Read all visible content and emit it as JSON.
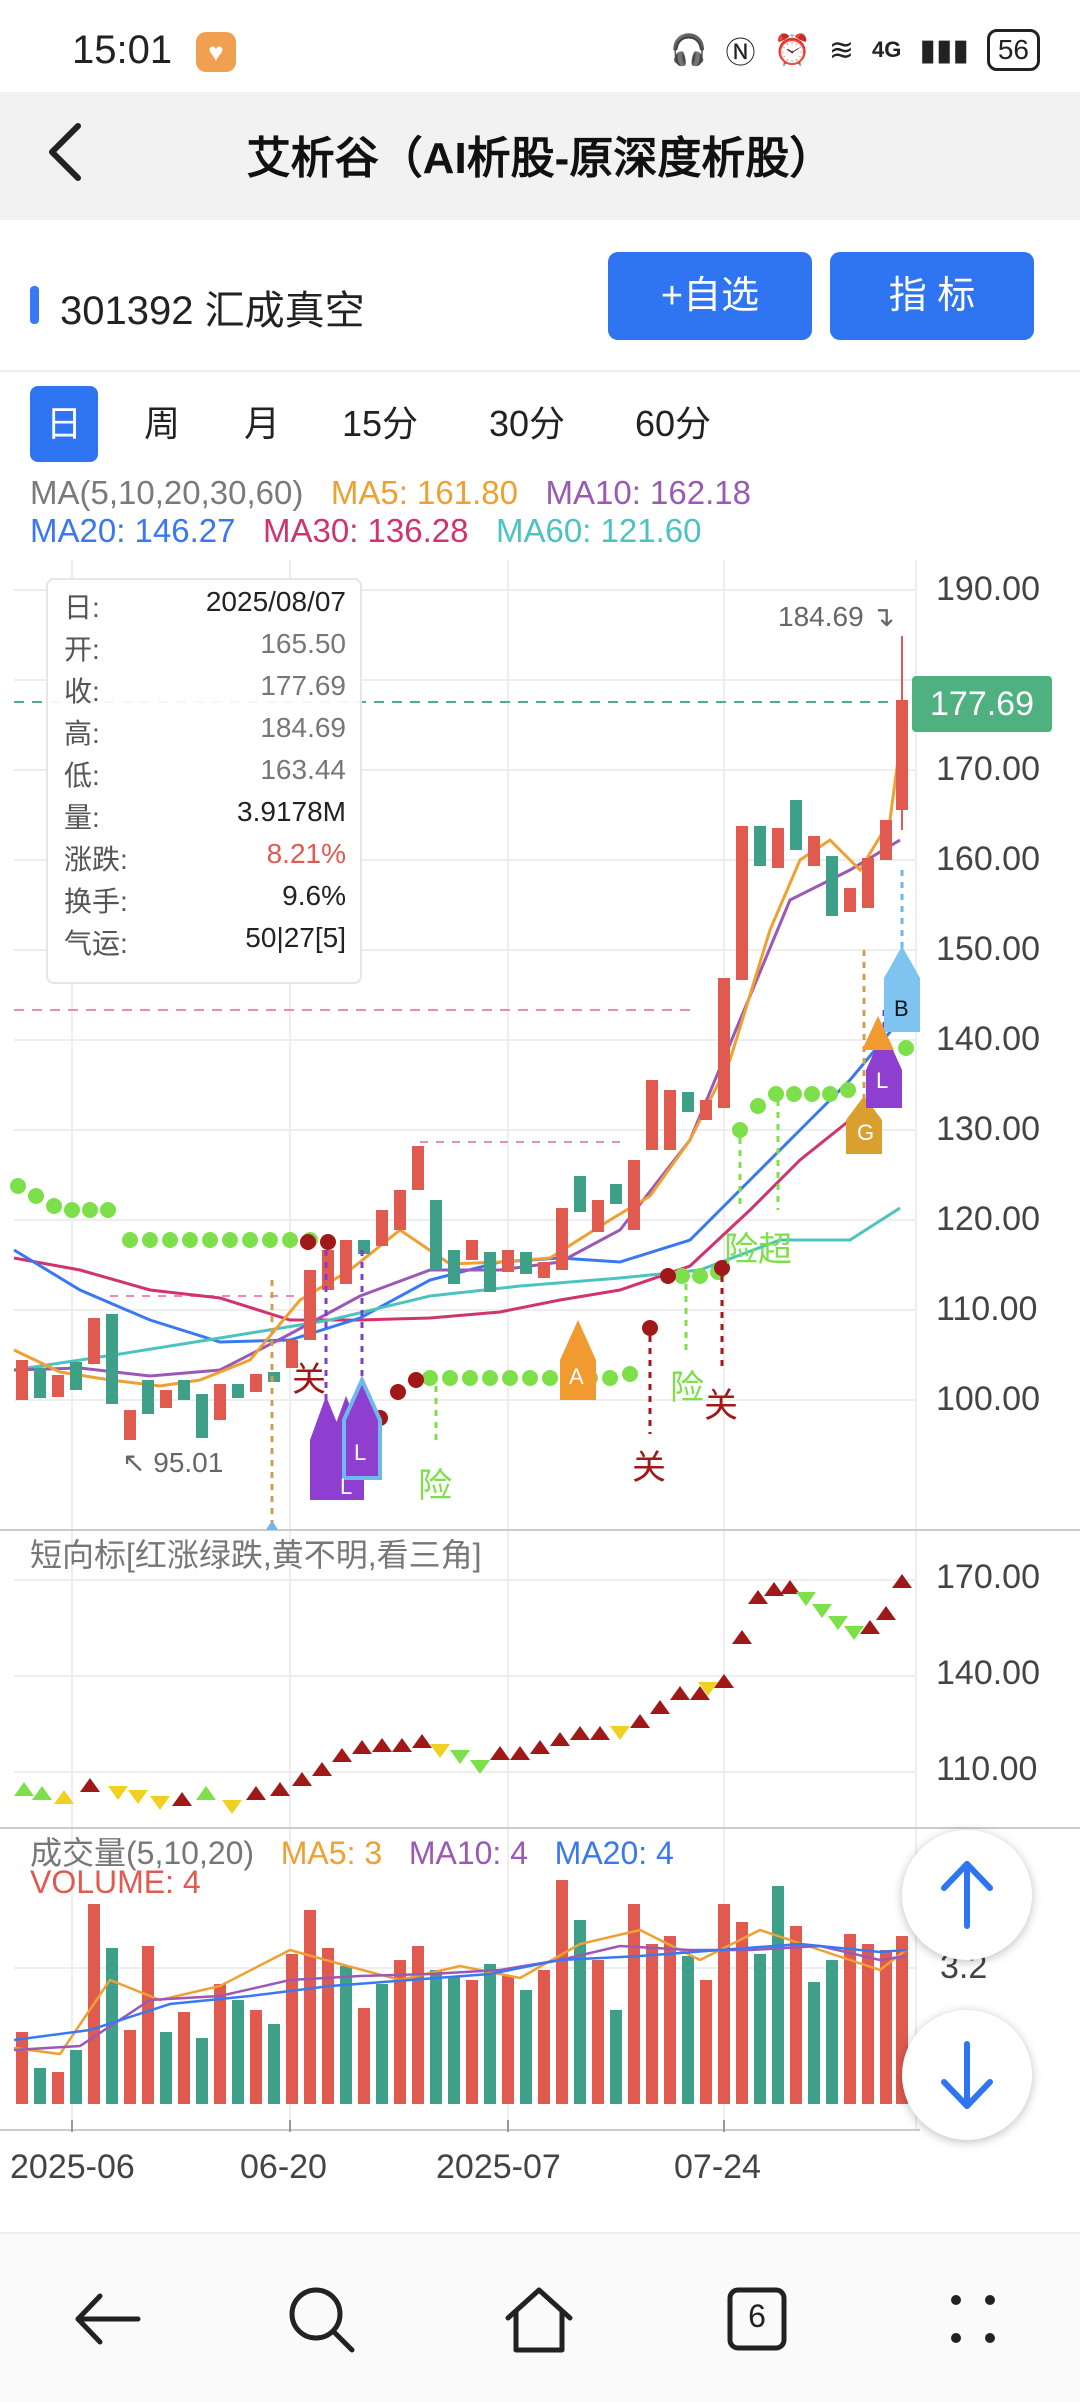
{
  "status_bar": {
    "time": "15:01",
    "network": "4G",
    "battery": "56"
  },
  "header": {
    "title": "艾析谷（AI析股-原深度析股）"
  },
  "stock": {
    "code_name": "301392 汇成真空",
    "add_watch_label": "+自选",
    "indicator_label": "指  标"
  },
  "periods": [
    "日",
    "周",
    "月",
    "15分",
    "30分",
    "60分"
  ],
  "ma_legend": {
    "title": "MA(5,10,20,30,60)",
    "ma5": "MA5: 161.80",
    "ma10": "MA10: 162.18",
    "ma20": "MA20: 146.27",
    "ma30": "MA30: 136.28",
    "ma60": "MA60: 121.60"
  },
  "info_box": [
    {
      "k": "日:",
      "v": "2025/08/07"
    },
    {
      "k": "开:",
      "v": "165.50"
    },
    {
      "k": "收:",
      "v": "177.69"
    },
    {
      "k": "高:",
      "v": "184.69"
    },
    {
      "k": "低:",
      "v": "163.44"
    },
    {
      "k": "量:",
      "v": "3.9178M"
    },
    {
      "k": "涨跌:",
      "v": "8.21%"
    },
    {
      "k": "换手:",
      "v": "9.6%"
    },
    {
      "k": "气运:",
      "v": "50|27[5]"
    }
  ],
  "price_axis": [
    "190.00",
    "170.00",
    "160.00",
    "150.00",
    "140.00",
    "130.00",
    "120.00",
    "110.00",
    "100.00"
  ],
  "current_price": "177.69",
  "high_marker": "184.69",
  "low_marker": "95.01",
  "chart_markers": {
    "guan": "关",
    "xian": "险",
    "xian_chao": "险超",
    "A": "A",
    "B": "B",
    "G": "G",
    "L": "L"
  },
  "short_indicator": {
    "title": "短向标[红涨绿跌,黄不明,看三角]",
    "axis": [
      "170.00",
      "140.00",
      "110.00"
    ]
  },
  "volume": {
    "title": "成交量(5,10,20)",
    "ma5": "MA5: 3",
    "ma10": "MA10: 4",
    "ma20": "MA20: 4",
    "volume": "VOLUME: 4",
    "axis_label": "3.2"
  },
  "x_axis": [
    "2025-06",
    "06-20",
    "2025-07",
    "07-24"
  ],
  "nav": {
    "tabs_count": "6"
  },
  "colors": {
    "accent": "#2f74f0",
    "up": "#e05a4f",
    "down": "#3fa08a",
    "ma5": "#f0a030",
    "ma10": "#9b59b6",
    "ma20": "#3a78f2",
    "ma30": "#d0336f",
    "ma60": "#4cc3c0"
  }
}
